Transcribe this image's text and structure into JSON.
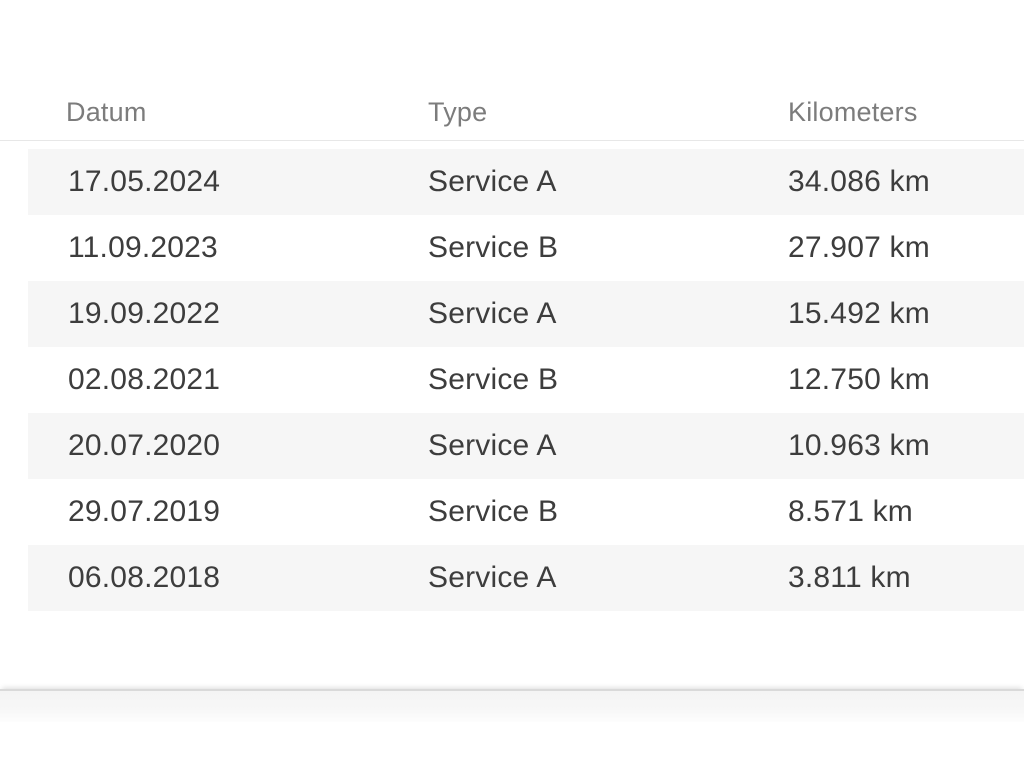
{
  "colors": {
    "page_background": "#ffffff",
    "stripe": "#f6f6f6",
    "header_text": "#7c7c7c",
    "body_text": "#3d3d3d",
    "header_border": "#e7e7e7",
    "divider_line": "#d9d9d9",
    "divider_band": "#f4f4f4"
  },
  "table": {
    "columns": [
      {
        "key": "datum",
        "label": "Datum"
      },
      {
        "key": "type",
        "label": "Type"
      },
      {
        "key": "kilometers",
        "label": "Kilometers"
      }
    ],
    "rows": [
      {
        "datum": "17.05.2024",
        "type": "Service A",
        "kilometers": "34.086 km"
      },
      {
        "datum": "11.09.2023",
        "type": "Service B",
        "kilometers": "27.907 km"
      },
      {
        "datum": "19.09.2022",
        "type": "Service A",
        "kilometers": "15.492 km"
      },
      {
        "datum": "02.08.2021",
        "type": "Service B",
        "kilometers": "12.750 km"
      },
      {
        "datum": "20.07.2020",
        "type": "Service A",
        "kilometers": "10.963 km"
      },
      {
        "datum": "29.07.2019",
        "type": "Service B",
        "kilometers": "8.571 km"
      },
      {
        "datum": "06.08.2018",
        "type": "Service A",
        "kilometers": "3.811 km"
      }
    ]
  }
}
